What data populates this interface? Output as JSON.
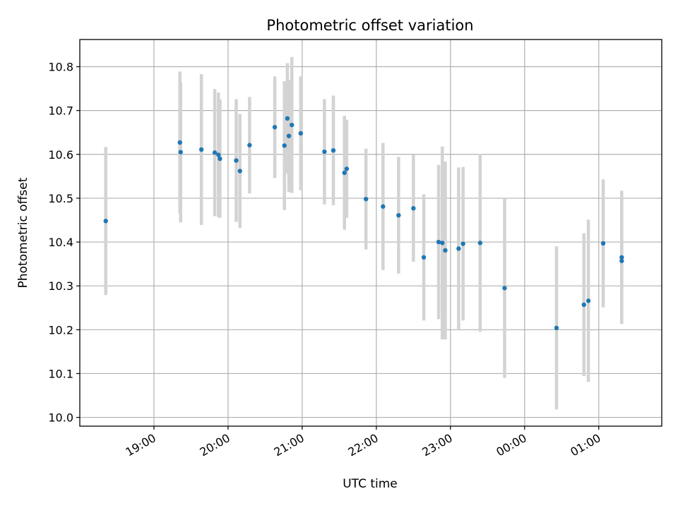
{
  "chart_data": {
    "type": "scatter",
    "title": "Photometric offset variation",
    "xlabel": "UTC time",
    "ylabel": "Photometric offset",
    "grid": true,
    "legend": "none",
    "x_unit": "hours since 18:00 UTC",
    "xlim": [
      18.0,
      25.85
    ],
    "ylim": [
      9.98,
      10.862
    ],
    "xticks": [
      {
        "value": 19,
        "label": "19:00"
      },
      {
        "value": 20,
        "label": "20:00"
      },
      {
        "value": 21,
        "label": "21:00"
      },
      {
        "value": 22,
        "label": "22:00"
      },
      {
        "value": 23,
        "label": "23:00"
      },
      {
        "value": 24,
        "label": "00:00"
      },
      {
        "value": 25,
        "label": "01:00"
      }
    ],
    "yticks": [
      {
        "value": 10.0,
        "label": "10.0"
      },
      {
        "value": 10.1,
        "label": "10.1"
      },
      {
        "value": 10.2,
        "label": "10.2"
      },
      {
        "value": 10.3,
        "label": "10.3"
      },
      {
        "value": 10.4,
        "label": "10.4"
      },
      {
        "value": 10.5,
        "label": "10.5"
      },
      {
        "value": 10.6,
        "label": "10.6"
      },
      {
        "value": 10.7,
        "label": "10.7"
      },
      {
        "value": 10.8,
        "label": "10.8"
      }
    ],
    "series": [
      {
        "name": "offset",
        "marker_color": "#1f77b4",
        "errorbar_color": "#d3d3d3",
        "points": [
          {
            "x": 18.35,
            "y": 10.448,
            "err": 0.169
          },
          {
            "x": 19.35,
            "y": 10.627,
            "err": 0.162
          },
          {
            "x": 19.36,
            "y": 10.605,
            "err": 0.16
          },
          {
            "x": 19.64,
            "y": 10.611,
            "err": 0.172
          },
          {
            "x": 19.82,
            "y": 10.604,
            "err": 0.145
          },
          {
            "x": 19.87,
            "y": 10.599,
            "err": 0.142
          },
          {
            "x": 19.89,
            "y": 10.59,
            "err": 0.135
          },
          {
            "x": 20.11,
            "y": 10.586,
            "err": 0.14
          },
          {
            "x": 20.16,
            "y": 10.562,
            "err": 0.13
          },
          {
            "x": 20.29,
            "y": 10.621,
            "err": 0.11
          },
          {
            "x": 20.63,
            "y": 10.662,
            "err": 0.116
          },
          {
            "x": 20.76,
            "y": 10.62,
            "err": 0.147
          },
          {
            "x": 20.8,
            "y": 10.682,
            "err": 0.126
          },
          {
            "x": 20.82,
            "y": 10.642,
            "err": 0.128
          },
          {
            "x": 20.86,
            "y": 10.667,
            "err": 0.155
          },
          {
            "x": 20.98,
            "y": 10.648,
            "err": 0.13
          },
          {
            "x": 21.3,
            "y": 10.606,
            "err": 0.12
          },
          {
            "x": 21.42,
            "y": 10.609,
            "err": 0.125
          },
          {
            "x": 21.57,
            "y": 10.558,
            "err": 0.13
          },
          {
            "x": 21.6,
            "y": 10.567,
            "err": 0.112
          },
          {
            "x": 21.86,
            "y": 10.498,
            "err": 0.115
          },
          {
            "x": 22.09,
            "y": 10.481,
            "err": 0.145
          },
          {
            "x": 22.3,
            "y": 10.461,
            "err": 0.133
          },
          {
            "x": 22.5,
            "y": 10.477,
            "err": 0.122
          },
          {
            "x": 22.64,
            "y": 10.365,
            "err": 0.144
          },
          {
            "x": 22.84,
            "y": 10.4,
            "err": 0.176
          },
          {
            "x": 22.89,
            "y": 10.398,
            "err": 0.22
          },
          {
            "x": 22.93,
            "y": 10.381,
            "err": 0.203
          },
          {
            "x": 23.11,
            "y": 10.385,
            "err": 0.185
          },
          {
            "x": 23.17,
            "y": 10.396,
            "err": 0.175
          },
          {
            "x": 23.4,
            "y": 10.398,
            "err": 0.203
          },
          {
            "x": 23.73,
            "y": 10.295,
            "err": 0.205
          },
          {
            "x": 24.43,
            "y": 10.204,
            "err": 0.186
          },
          {
            "x": 24.8,
            "y": 10.257,
            "err": 0.163
          },
          {
            "x": 24.86,
            "y": 10.266,
            "err": 0.185
          },
          {
            "x": 25.06,
            "y": 10.397,
            "err": 0.146
          },
          {
            "x": 25.31,
            "y": 10.365,
            "err": 0.152
          },
          {
            "x": 25.31,
            "y": 10.357,
            "err": 0.143
          }
        ]
      }
    ]
  }
}
